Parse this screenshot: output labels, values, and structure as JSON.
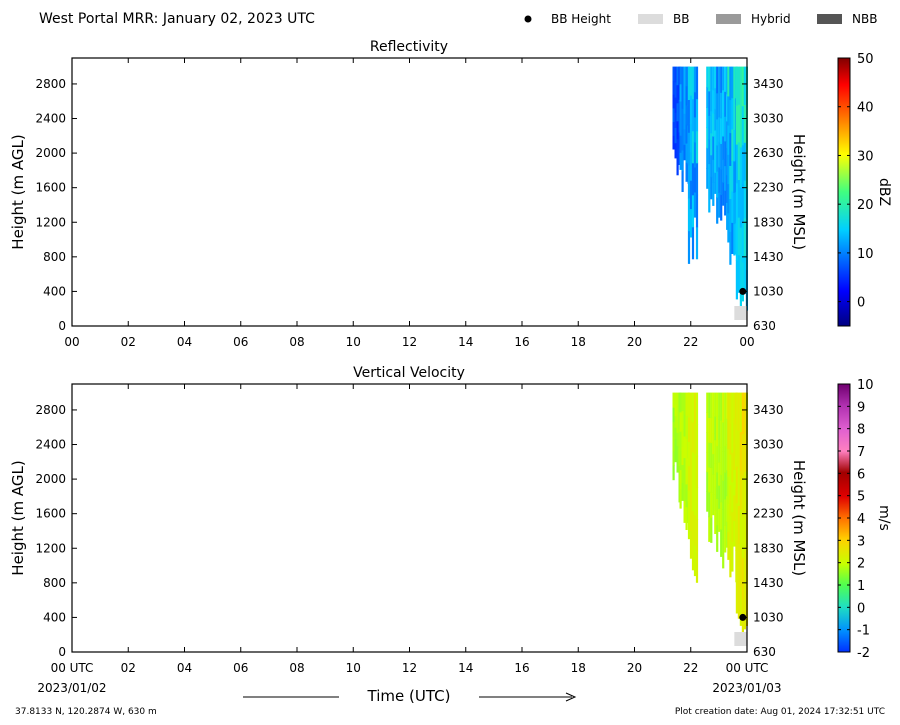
{
  "header": {
    "title": "West Portal MRR:  January 02, 2023 UTC",
    "legend": [
      {
        "label": "BB Height",
        "marker": "dot",
        "color": "#000000"
      },
      {
        "label": "BB",
        "marker": "rect",
        "color": "#dcdcdc"
      },
      {
        "label": "Hybrid",
        "marker": "rect",
        "color": "#9a9a9a"
      },
      {
        "label": "NBB",
        "marker": "rect",
        "color": "#555555"
      }
    ]
  },
  "footer": {
    "location": "37.8133 N, 120.2874 W, 630 m",
    "created": "Plot creation date: Aug 01, 2024 17:32:51 UTC",
    "date_start": "2023/01/02",
    "date_end": "2023/01/03",
    "time_label": "Time (UTC)"
  },
  "chart_data": [
    {
      "type": "heatmap",
      "title": "Reflectivity",
      "xlabel": "",
      "ylabel": "Height (m AGL)",
      "ylabel_right": "Height (m MSL)",
      "xlim": [
        0,
        24
      ],
      "ylim": [
        0,
        3100
      ],
      "x_ticks": [
        "00",
        "02",
        "04",
        "06",
        "08",
        "10",
        "12",
        "14",
        "16",
        "18",
        "20",
        "22",
        "00"
      ],
      "y_ticks": [
        0,
        400,
        800,
        1200,
        1600,
        2000,
        2400,
        2800
      ],
      "y_ticks_right": [
        "630",
        "1030",
        "1430",
        "1830",
        "2230",
        "2630",
        "3030",
        "3430"
      ],
      "colorbar": {
        "label": "dBZ",
        "min": -5,
        "max": 50,
        "ticks": [
          "0",
          "10",
          "20",
          "30",
          "40",
          "50"
        ],
        "tick_values": [
          0,
          10,
          20,
          30,
          40,
          50
        ],
        "colormap": "jet"
      },
      "bb_height": [
        {
          "x": 23.85,
          "y": 400
        }
      ],
      "bb_flags": [
        {
          "x_start": 23.55,
          "x_end": 24.0,
          "type": "BB"
        }
      ],
      "echo_columns": [
        {
          "x_start": 21.35,
          "x_end": 21.6,
          "base": 1900,
          "top": 3000,
          "value_low": 2,
          "value_high": 10
        },
        {
          "x_start": 21.6,
          "x_end": 21.9,
          "base": 1600,
          "top": 3000,
          "value_low": 5,
          "value_high": 14
        },
        {
          "x_start": 21.9,
          "x_end": 22.2,
          "base": 900,
          "top": 3000,
          "value_low": 4,
          "value_high": 18
        },
        {
          "x_start": 22.55,
          "x_end": 22.9,
          "base": 1400,
          "top": 3000,
          "value_low": 6,
          "value_high": 18
        },
        {
          "x_start": 22.9,
          "x_end": 23.3,
          "base": 1100,
          "top": 3000,
          "value_low": 5,
          "value_high": 16
        },
        {
          "x_start": 23.3,
          "x_end": 23.6,
          "base": 900,
          "top": 3000,
          "value_low": 4,
          "value_high": 20
        },
        {
          "x_start": 23.6,
          "x_end": 24.0,
          "base": 300,
          "top": 3000,
          "value_low": 8,
          "value_high": 22
        }
      ]
    },
    {
      "type": "heatmap",
      "title": "Vertical Velocity",
      "xlabel": "Time (UTC)",
      "ylabel": "Height (m AGL)",
      "ylabel_right": "Height (m MSL)",
      "xlim": [
        0,
        24
      ],
      "ylim": [
        0,
        3100
      ],
      "x_ticks": [
        "00 UTC",
        "02",
        "04",
        "06",
        "08",
        "10",
        "12",
        "14",
        "16",
        "18",
        "20",
        "22",
        "00 UTC"
      ],
      "y_ticks": [
        0,
        400,
        800,
        1200,
        1600,
        2000,
        2400,
        2800
      ],
      "y_ticks_right": [
        "630",
        "1030",
        "1430",
        "1830",
        "2230",
        "2630",
        "3030",
        "3430"
      ],
      "colorbar": {
        "label": "m/s",
        "min": -2,
        "max": 10,
        "ticks": [
          "-2",
          "-1",
          "0",
          "1",
          "2",
          "3",
          "4",
          "5",
          "6",
          "7",
          "8",
          "9",
          "10"
        ],
        "tick_values": [
          -2,
          -1,
          0,
          1,
          2,
          3,
          4,
          5,
          6,
          7,
          8,
          9,
          10
        ],
        "colormap": "velocity"
      },
      "bb_height": [
        {
          "x": 23.85,
          "y": 400
        }
      ],
      "bb_flags": [
        {
          "x_start": 23.55,
          "x_end": 24.0,
          "type": "BB"
        }
      ],
      "echo_columns": [
        {
          "x_start": 21.35,
          "x_end": 21.6,
          "base": 1900,
          "top": 3000,
          "value_low": 1.2,
          "value_high": 2.0
        },
        {
          "x_start": 21.6,
          "x_end": 21.9,
          "base": 1600,
          "top": 3000,
          "value_low": 1.3,
          "value_high": 2.2
        },
        {
          "x_start": 21.9,
          "x_end": 22.2,
          "base": 900,
          "top": 3000,
          "value_low": 1.5,
          "value_high": 2.6
        },
        {
          "x_start": 22.55,
          "x_end": 22.9,
          "base": 1400,
          "top": 3000,
          "value_low": 1.2,
          "value_high": 2.2
        },
        {
          "x_start": 22.9,
          "x_end": 23.3,
          "base": 1100,
          "top": 3000,
          "value_low": 1.2,
          "value_high": 2.2
        },
        {
          "x_start": 23.3,
          "x_end": 23.6,
          "base": 900,
          "top": 3000,
          "value_low": 1.5,
          "value_high": 2.6
        },
        {
          "x_start": 23.6,
          "x_end": 24.0,
          "base": 300,
          "top": 3000,
          "value_low": 1.6,
          "value_high": 3.0
        }
      ]
    }
  ]
}
